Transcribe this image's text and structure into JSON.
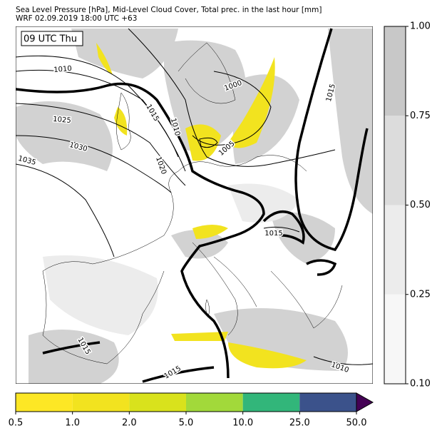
{
  "header": {
    "line1": "Sea Level Pressure [hPa], Mid-Level Cloud Cover, Total prec. in the last hour [mm]",
    "line2": "WRF 02.09.2019 18:00 UTC +63"
  },
  "time_label": "09 UTC Thu",
  "contour_labels": [
    "1010",
    "1000",
    "1015",
    "1010",
    "1025",
    "1030",
    "1035",
    "1020",
    "1005",
    "1015",
    "1015",
    "1015",
    "1015",
    "1010"
  ],
  "cloud_colorbar": {
    "colors": [
      "#f7f7f7",
      "#ececec",
      "#dcdcdc",
      "#c8c8c8"
    ],
    "ticks": [
      {
        "value": 0.1,
        "label": "0.10"
      },
      {
        "value": 0.25,
        "label": "0.25"
      },
      {
        "value": 0.5,
        "label": "0.50"
      },
      {
        "value": 0.75,
        "label": "0.75"
      },
      {
        "value": 1.0,
        "label": "1.00"
      }
    ]
  },
  "precip_colorbar": {
    "colors": [
      "#fde725",
      "#f2e31f",
      "#d9e21c",
      "#a2d93a",
      "#32b67a",
      "#3b528b"
    ],
    "extend_color": "#440154",
    "ticks": [
      0.5,
      {
        "value": 1,
        "label": "1.0"
      },
      {
        "value": 2,
        "label": "2.0"
      },
      {
        "value": 5,
        "label": "5.0"
      },
      {
        "value": 10,
        "label": "10.0"
      },
      {
        "value": 25,
        "label": "25.0"
      },
      {
        "value": 50,
        "label": "50.0"
      }
    ]
  }
}
